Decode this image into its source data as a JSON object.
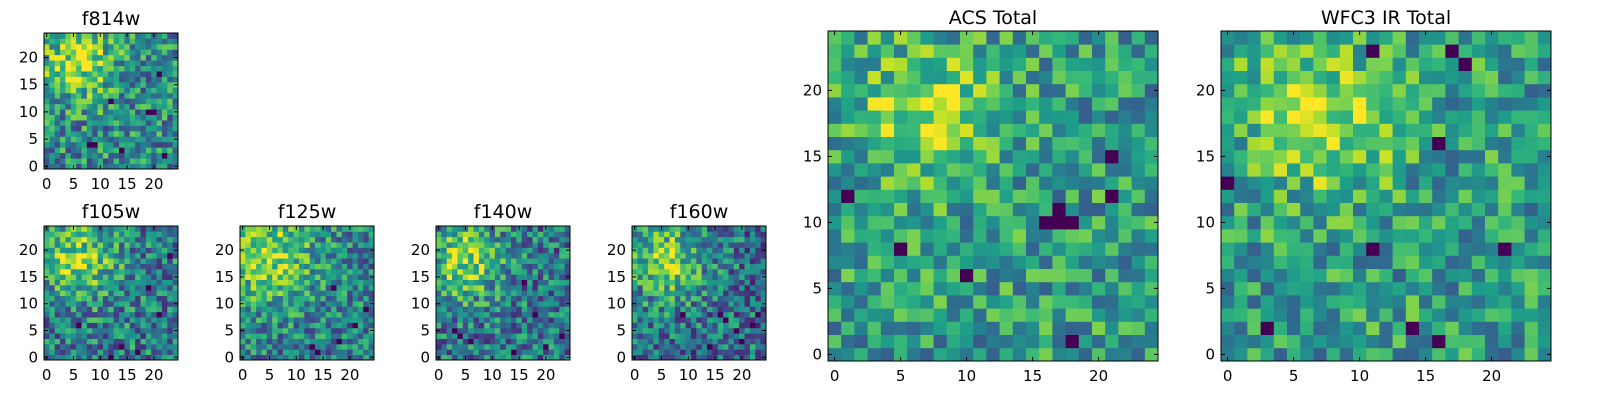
{
  "chart_data": [
    {
      "type": "heatmap",
      "id": "f814w",
      "title": "f814w",
      "colormap": "viridis",
      "xlim": [
        -0.5,
        24.5
      ],
      "ylim": [
        -0.5,
        24.5
      ],
      "xticks": [
        0,
        5,
        10,
        15,
        20
      ],
      "yticks": [
        0,
        5,
        10,
        15,
        20
      ],
      "xtick_labels": [
        "0",
        "5",
        "10",
        "15",
        "20"
      ],
      "ytick_labels": [
        "0",
        "5",
        "10",
        "15",
        "20"
      ],
      "pattern": {
        "seed": 11,
        "peak": [
          6,
          19
        ],
        "sigma": 5.0,
        "bright": 0.35,
        "base": 0.48,
        "noise": 0.3,
        "dark_cells": [
          [
            8,
            4
          ],
          [
            9,
            4
          ],
          [
            19,
            10
          ],
          [
            20,
            10
          ],
          [
            14,
            3
          ],
          [
            22,
            2
          ],
          [
            21,
            17
          ],
          [
            12,
            12
          ]
        ]
      }
    },
    {
      "type": "heatmap",
      "id": "f105w",
      "title": "f105w",
      "colormap": "viridis",
      "xlim": [
        -0.5,
        24.5
      ],
      "ylim": [
        -0.5,
        24.5
      ],
      "xticks": [
        0,
        5,
        10,
        15,
        20
      ],
      "yticks": [
        0,
        5,
        10,
        15,
        20
      ],
      "xtick_labels": [
        "0",
        "5",
        "10",
        "15",
        "20"
      ],
      "ytick_labels": [
        "0",
        "5",
        "10",
        "15",
        "20"
      ],
      "pattern": {
        "seed": 23,
        "peak": [
          6,
          18
        ],
        "sigma": 5.0,
        "bright": 0.4,
        "base": 0.42,
        "noise": 0.3,
        "dark_cells": [
          [
            14,
            2
          ],
          [
            17,
            1
          ],
          [
            21,
            8
          ],
          [
            23,
            19
          ],
          [
            6,
            6
          ],
          [
            12,
            0
          ],
          [
            19,
            13
          ]
        ]
      }
    },
    {
      "type": "heatmap",
      "id": "f125w",
      "title": "f125w",
      "colormap": "viridis",
      "xlim": [
        -0.5,
        24.5
      ],
      "ylim": [
        -0.5,
        24.5
      ],
      "xticks": [
        0,
        5,
        10,
        15,
        20
      ],
      "yticks": [
        0,
        5,
        10,
        15,
        20
      ],
      "xtick_labels": [
        "0",
        "5",
        "10",
        "15",
        "20"
      ],
      "ytick_labels": [
        "0",
        "5",
        "10",
        "15",
        "20"
      ],
      "pattern": {
        "seed": 37,
        "peak": [
          5,
          19
        ],
        "sigma": 6.0,
        "bright": 0.4,
        "base": 0.44,
        "noise": 0.28,
        "dark_cells": [
          [
            13,
            2
          ],
          [
            17,
            13
          ],
          [
            18,
            3
          ],
          [
            21,
            6
          ],
          [
            23,
            9
          ],
          [
            14,
            1
          ]
        ]
      }
    },
    {
      "type": "heatmap",
      "id": "f140w",
      "title": "f140w",
      "colormap": "viridis",
      "xlim": [
        -0.5,
        24.5
      ],
      "ylim": [
        -0.5,
        24.5
      ],
      "xticks": [
        0,
        5,
        10,
        15,
        20
      ],
      "yticks": [
        0,
        5,
        10,
        15,
        20
      ],
      "xtick_labels": [
        "0",
        "5",
        "10",
        "15",
        "20"
      ],
      "ytick_labels": [
        "0",
        "5",
        "10",
        "15",
        "20"
      ],
      "pattern": {
        "seed": 41,
        "peak": [
          5,
          18
        ],
        "sigma": 5.0,
        "bright": 0.42,
        "base": 0.4,
        "noise": 0.3,
        "dark_cells": [
          [
            3,
            5
          ],
          [
            4,
            4
          ],
          [
            6,
            3
          ],
          [
            14,
            1
          ],
          [
            18,
            8
          ],
          [
            23,
            4
          ],
          [
            20,
            2
          ],
          [
            16,
            14
          ]
        ]
      }
    },
    {
      "type": "heatmap",
      "id": "f160w",
      "title": "f160w",
      "colormap": "viridis",
      "xlim": [
        -0.5,
        24.5
      ],
      "ylim": [
        -0.5,
        24.5
      ],
      "xticks": [
        0,
        5,
        10,
        15,
        20
      ],
      "yticks": [
        0,
        5,
        10,
        15,
        20
      ],
      "xtick_labels": [
        "0",
        "5",
        "10",
        "15",
        "20"
      ],
      "ytick_labels": [
        "0",
        "5",
        "10",
        "15",
        "20"
      ],
      "pattern": {
        "seed": 53,
        "peak": [
          6,
          18
        ],
        "sigma": 5.0,
        "bright": 0.42,
        "base": 0.38,
        "noise": 0.3,
        "dark_cells": [
          [
            16,
            8
          ],
          [
            17,
            7
          ],
          [
            19,
            5
          ],
          [
            22,
            6
          ],
          [
            23,
            8
          ],
          [
            20,
            3
          ],
          [
            14,
            2
          ],
          [
            9,
            8
          ]
        ]
      }
    },
    {
      "type": "heatmap",
      "id": "acs-total",
      "title": "ACS Total",
      "colormap": "viridis",
      "xlim": [
        -0.5,
        24.5
      ],
      "ylim": [
        -0.5,
        24.5
      ],
      "xticks": [
        0,
        5,
        10,
        15,
        20
      ],
      "yticks": [
        0,
        5,
        10,
        15,
        20
      ],
      "xtick_labels": [
        "0",
        "5",
        "10",
        "15",
        "20"
      ],
      "ytick_labels": [
        "0",
        "5",
        "10",
        "15",
        "20"
      ],
      "pattern": {
        "seed": 67,
        "peak": [
          7,
          18
        ],
        "sigma": 3.5,
        "bright": 0.35,
        "base": 0.55,
        "noise": 0.26,
        "dark_cells": [
          [
            16,
            10
          ],
          [
            17,
            10
          ],
          [
            18,
            10
          ],
          [
            5,
            8
          ],
          [
            1,
            12
          ],
          [
            21,
            12
          ],
          [
            21,
            15
          ],
          [
            10,
            6
          ],
          [
            18,
            1
          ],
          [
            17,
            11
          ]
        ]
      }
    },
    {
      "type": "heatmap",
      "id": "wfc3-ir-total",
      "title": "WFC3 IR Total",
      "colormap": "viridis",
      "xlim": [
        -0.5,
        24.5
      ],
      "ylim": [
        -0.5,
        24.5
      ],
      "xticks": [
        0,
        5,
        10,
        15,
        20
      ],
      "yticks": [
        0,
        5,
        10,
        15,
        20
      ],
      "xtick_labels": [
        "0",
        "5",
        "10",
        "15",
        "20"
      ],
      "ytick_labels": [
        "0",
        "5",
        "10",
        "15",
        "20"
      ],
      "pattern": {
        "seed": 79,
        "peak": [
          7,
          18
        ],
        "sigma": 4.0,
        "bright": 0.35,
        "base": 0.55,
        "noise": 0.26,
        "dark_cells": [
          [
            0,
            13
          ],
          [
            11,
            8
          ],
          [
            16,
            1
          ],
          [
            14,
            2
          ],
          [
            16,
            16
          ],
          [
            21,
            8
          ],
          [
            17,
            23
          ],
          [
            18,
            22
          ],
          [
            11,
            23
          ],
          [
            3,
            2
          ]
        ]
      }
    }
  ]
}
